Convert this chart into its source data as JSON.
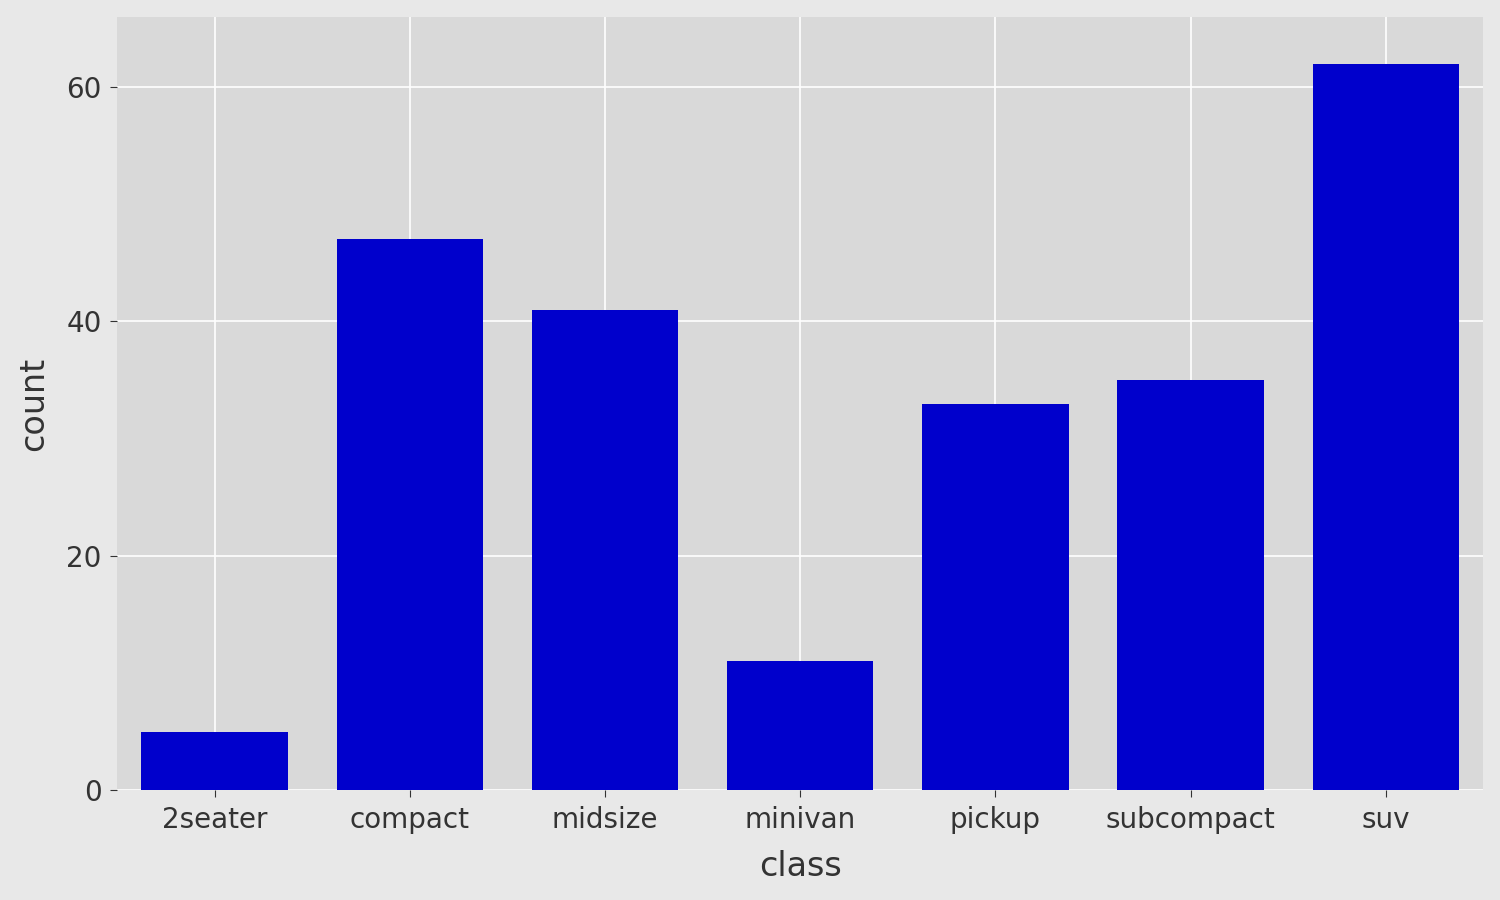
{
  "categories": [
    "2seater",
    "compact",
    "midsize",
    "minivan",
    "pickup",
    "subcompact",
    "suv"
  ],
  "values": [
    5,
    47,
    41,
    11,
    33,
    35,
    62
  ],
  "bar_color": "#0000CC",
  "fig_background_color": "#E8E8E8",
  "panel_background": "#D9D9D9",
  "grid_color": "#FFFFFF",
  "title": "",
  "xlabel": "class",
  "ylabel": "count",
  "xlabel_fontsize": 24,
  "ylabel_fontsize": 24,
  "tick_label_fontsize": 20,
  "ytick_labels": [
    "0",
    "20",
    "40",
    "60"
  ],
  "ytick_values": [
    0,
    20,
    40,
    60
  ],
  "ylim": [
    0,
    66
  ],
  "bar_width": 0.75,
  "figsize": [
    15.0,
    9.0
  ],
  "dpi": 100,
  "text_color": "#333333"
}
